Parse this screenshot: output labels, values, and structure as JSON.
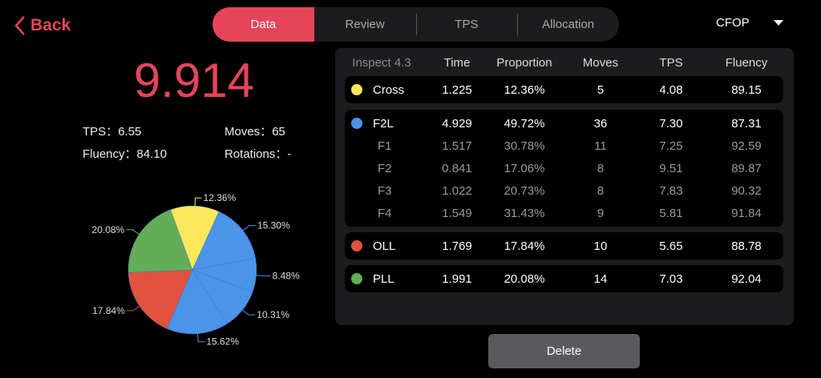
{
  "nav": {
    "back_label": "Back",
    "tabs": [
      "Data",
      "Review",
      "TPS",
      "Allocation"
    ],
    "active_tab": "Data",
    "method": "CFOP"
  },
  "colors": {
    "accent": "#e5455a",
    "cross": "#fce85a",
    "f2l": "#4a94ea",
    "oll": "#e2513f",
    "pll": "#63ad58"
  },
  "summary": {
    "time": "9.914",
    "tps_label": "TPS：",
    "tps": "6.55",
    "moves_label": "Moves：",
    "moves": "65",
    "fluency_label": "Fluency：",
    "fluency": "84.10",
    "rotations_label": "Rotations：",
    "rotations": "-"
  },
  "table": {
    "headers": [
      "Inspect 4.3",
      "Time",
      "Proportion",
      "Moves",
      "TPS",
      "Fluency"
    ],
    "groups": [
      {
        "rows": [
          {
            "name": "Cross",
            "color": "cross",
            "values": [
              "1.225",
              "12.36%",
              "5",
              "4.08",
              "89.15"
            ]
          }
        ]
      },
      {
        "rows": [
          {
            "name": "F2L",
            "color": "f2l",
            "values": [
              "4.929",
              "49.72%",
              "36",
              "7.30",
              "87.31"
            ]
          },
          {
            "name": "F1",
            "values": [
              "1.517",
              "30.78%",
              "11",
              "7.25",
              "92.59"
            ]
          },
          {
            "name": "F2",
            "values": [
              "0.841",
              "17.06%",
              "8",
              "9.51",
              "89.87"
            ]
          },
          {
            "name": "F3",
            "values": [
              "1.022",
              "20.73%",
              "8",
              "7.83",
              "90.32"
            ]
          },
          {
            "name": "F4",
            "values": [
              "1.549",
              "31.43%",
              "9",
              "5.81",
              "91.84"
            ]
          }
        ]
      },
      {
        "rows": [
          {
            "name": "OLL",
            "color": "oll",
            "values": [
              "1.769",
              "17.84%",
              "10",
              "5.65",
              "88.78"
            ]
          }
        ]
      },
      {
        "rows": [
          {
            "name": "PLL",
            "color": "pll",
            "values": [
              "1.991",
              "20.08%",
              "14",
              "7.03",
              "92.04"
            ]
          }
        ]
      }
    ]
  },
  "delete_label": "Delete",
  "chart_data": {
    "type": "pie",
    "start_angle_deg": -20,
    "slices": [
      {
        "label": "12.36%",
        "value": 12.36,
        "color": "#fce85a"
      },
      {
        "label": "15.30%",
        "value": 15.3,
        "color": "#4a94ea"
      },
      {
        "label": "8.48%",
        "value": 8.48,
        "color": "#4a94ea"
      },
      {
        "label": "10.31%",
        "value": 10.31,
        "color": "#4a94ea"
      },
      {
        "label": "15.62%",
        "value": 15.62,
        "color": "#4a94ea"
      },
      {
        "label": "17.84%",
        "value": 17.84,
        "color": "#e2513f"
      },
      {
        "label": "20.08%",
        "value": 20.08,
        "color": "#63ad58"
      }
    ]
  }
}
